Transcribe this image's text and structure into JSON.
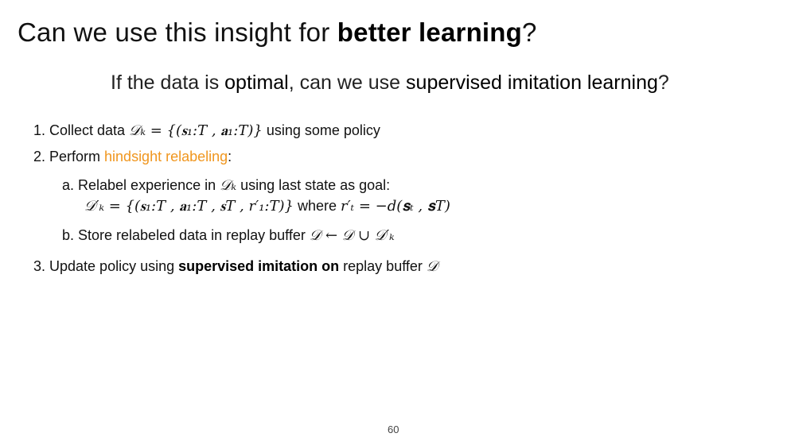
{
  "title": {
    "prefix": "Can we use this insight for ",
    "emphasis": "better learning",
    "suffix": "?"
  },
  "subtitle": {
    "part1": "If the data is ",
    "emphasis1": "optimal",
    "part2": ", can we use ",
    "emphasis2": "supervised imitation learning",
    "part3": "?"
  },
  "steps": {
    "step1": {
      "label": "1. Collect data ",
      "math": "𝒟ₖ = {(𝐬₁:T , 𝐚₁:T)}",
      "suffix": " using some policy"
    },
    "step2": {
      "label": "2. Perform ",
      "highlight": "hindsight relabeling",
      "suffix": ":"
    },
    "step2a": {
      "label": "a.   Relabel experience in ",
      "math": "𝒟ₖ",
      "suffix": " using last state as goal:"
    },
    "step2a_formula": {
      "lhs": "𝒟′ₖ = {(𝐬₁:T , 𝐚₁:T , 𝐬T , r′₁:T)}",
      "middle": " where ",
      "rhs": "r′ₜ = −d(𝐬ₜ , 𝐬T)"
    },
    "step2b": {
      "label": "b. Store relabeled data in replay buffer ",
      "math": "𝒟 ← 𝒟 ∪ 𝒟′ₖ"
    },
    "step3": {
      "label": "3. Update policy using ",
      "emphasis": "supervised imitation on",
      "suffix": " replay buffer ",
      "math": "𝒟"
    }
  },
  "page_number": "60",
  "colors": {
    "highlight": "#f0961e",
    "text": "#111111"
  }
}
